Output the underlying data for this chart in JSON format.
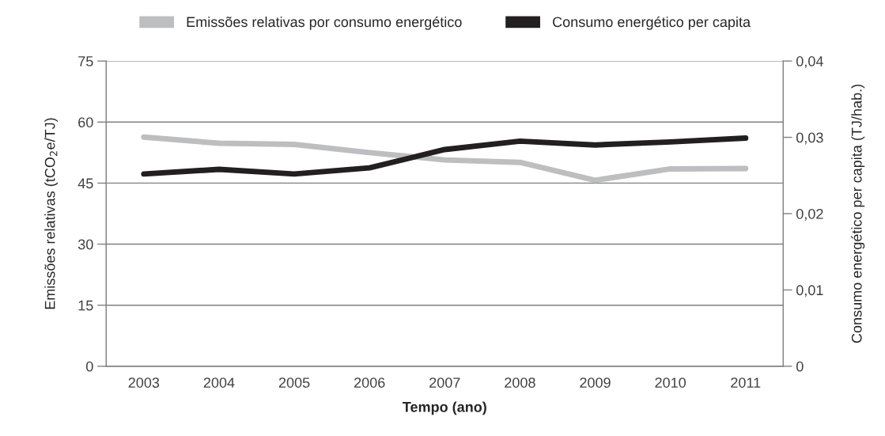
{
  "chart_data": {
    "type": "line",
    "xlabel": "Tempo (ano)",
    "ylabel": "Emissões relativas (tCO$_{2}$e/TJ)",
    "y2label": "Consumo energético per capita (TJ/hab.)",
    "categories": [
      "2003",
      "2004",
      "2005",
      "2006",
      "2007",
      "2008",
      "2009",
      "2010",
      "2011"
    ],
    "series": [
      {
        "name": "Emissões relativas por consumo energético",
        "color": "#bdbec0",
        "values": [
          56.3,
          54.8,
          54.5,
          52.5,
          50.7,
          50.1,
          45.7,
          48.5,
          48.6
        ]
      },
      {
        "name": "Consumo energético per capita",
        "color": "#231f20",
        "axis": "y2",
        "values": [
          0.0252,
          0.0258,
          0.0252,
          0.026,
          0.0284,
          0.0295,
          0.029,
          0.0294,
          0.0299
        ]
      }
    ],
    "ylim": [
      0,
      75
    ],
    "yticks": [
      0,
      15,
      30,
      45,
      60,
      75
    ],
    "y2lim": [
      0,
      0.04
    ],
    "y2ticks": [
      {
        "value": 0,
        "label": "0"
      },
      {
        "value": 0.01,
        "label": "0,01"
      },
      {
        "value": 0.02,
        "label": "0,02"
      },
      {
        "value": 0.03,
        "label": "0,03"
      },
      {
        "value": 0.04,
        "label": "0,04"
      }
    ],
    "grid": "y",
    "legend": "top",
    "line_style": "solid",
    "marker": "none"
  }
}
